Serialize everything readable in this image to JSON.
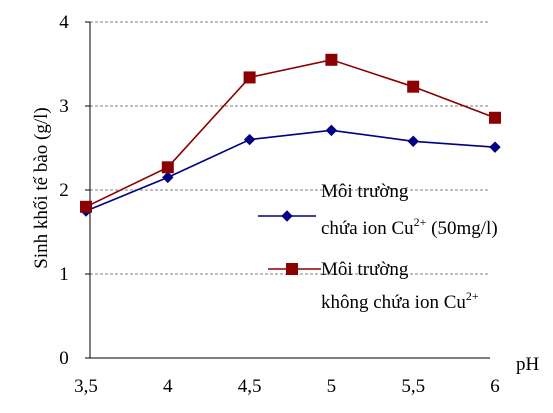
{
  "chart_data": {
    "type": "line",
    "ylabel": "Sinh khối tế bào (g/l)",
    "xlabel": "pH",
    "x": [
      "3,5",
      "4",
      "4,5",
      "5",
      "5,5",
      "6"
    ],
    "ylim": [
      0,
      4
    ],
    "yticks": [
      "0",
      "1",
      "2",
      "3",
      "4"
    ],
    "grid": true,
    "legend_position": "right",
    "series": [
      {
        "name_line1": "Môi trường",
        "name_line2_prefix": "chứa ion Cu",
        "name_line2_sup": "2+",
        "name_line2_suffix": " (50mg/l)",
        "values": [
          1.75,
          2.15,
          2.6,
          2.71,
          2.58,
          2.51
        ],
        "color": "#000080",
        "marker": "diamond"
      },
      {
        "name_line1": "Môi trường",
        "name_line2_prefix": "không chứa ion Cu",
        "name_line2_sup": "2+",
        "name_line2_suffix": "",
        "values": [
          1.8,
          2.27,
          3.34,
          3.55,
          3.23,
          2.86
        ],
        "color": "#8b0000",
        "marker": "square"
      }
    ]
  }
}
